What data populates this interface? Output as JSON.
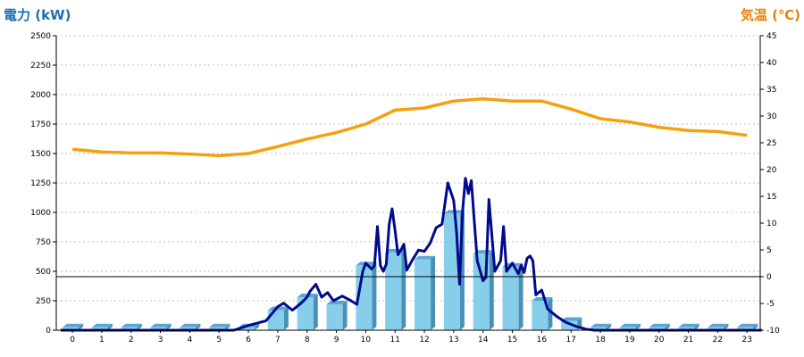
{
  "chart_data": {
    "type": "bar",
    "categories": [
      "0",
      "1",
      "2",
      "3",
      "4",
      "5",
      "6",
      "7",
      "8",
      "9",
      "10",
      "11",
      "12",
      "13",
      "14",
      "15",
      "16",
      "17",
      "18",
      "19",
      "20",
      "21",
      "22",
      "23"
    ],
    "left_axis": {
      "label": "電力 (kW)",
      "ylim": [
        0,
        2500
      ],
      "ticks": [
        "0",
        "250",
        "500",
        "750",
        "1000",
        "1250",
        "1500",
        "1750",
        "2000",
        "2250",
        "2500"
      ],
      "color": "#1f6fb2"
    },
    "right_axis": {
      "label": "気温 (℃)",
      "ylim": [
        -10,
        45
      ],
      "ticks": [
        "-10",
        "-5",
        "0",
        "5",
        "10",
        "15",
        "20",
        "25",
        "30",
        "35",
        "40",
        "45"
      ],
      "color": "#e8820c"
    },
    "bars": {
      "axis": "left",
      "color": "#87ceeb",
      "values": [
        25,
        25,
        25,
        25,
        25,
        25,
        25,
        170,
        280,
        220,
        550,
        660,
        600,
        990,
        650,
        540,
        250,
        80,
        25,
        25,
        25,
        25,
        25,
        25
      ]
    },
    "power_line": {
      "axis": "left",
      "color": "#000a8c",
      "x": [
        -0.4,
        0,
        0.5,
        1,
        1.5,
        2,
        2.5,
        3,
        3.5,
        4,
        4.5,
        5,
        5.5,
        6,
        6.3,
        6.6,
        7,
        7.2,
        7.5,
        7.8,
        8,
        8.1,
        8.2,
        8.3,
        8.5,
        8.7,
        8.9,
        9.2,
        9.5,
        9.7,
        9.9,
        10,
        10.2,
        10.3,
        10.4,
        10.5,
        10.6,
        10.7,
        10.8,
        10.9,
        11,
        11.1,
        11.2,
        11.3,
        11.4,
        11.6,
        11.8,
        12,
        12.2,
        12.4,
        12.6,
        12.8,
        13,
        13.1,
        13.2,
        13.3,
        13.4,
        13.5,
        13.6,
        13.8,
        14,
        14.1,
        14.2,
        14.4,
        14.6,
        14.7,
        14.8,
        15,
        15.2,
        15.3,
        15.4,
        15.5,
        15.6,
        15.7,
        15.8,
        16,
        16.2,
        16.5,
        16.8,
        17,
        17.2,
        17.5,
        17.8,
        18,
        18.5,
        19,
        20,
        21,
        22,
        23,
        23.5
      ],
      "y": [
        0,
        0,
        0,
        0,
        0,
        0,
        0,
        0,
        0,
        0,
        0,
        0,
        0,
        40,
        60,
        80,
        200,
        230,
        170,
        230,
        280,
        330,
        360,
        390,
        280,
        320,
        250,
        290,
        250,
        220,
        500,
        570,
        520,
        550,
        880,
        550,
        500,
        560,
        900,
        1030,
        850,
        640,
        680,
        730,
        510,
        600,
        680,
        670,
        740,
        870,
        900,
        1250,
        1100,
        820,
        390,
        1000,
        1290,
        1160,
        1270,
        590,
        420,
        450,
        1110,
        500,
        590,
        880,
        500,
        570,
        480,
        550,
        490,
        610,
        630,
        590,
        300,
        340,
        180,
        120,
        70,
        50,
        30,
        10,
        0,
        0,
        0,
        0,
        0,
        0,
        0,
        0,
        0
      ]
    },
    "temperature_line": {
      "axis": "right",
      "color": "#f5a00f",
      "x": [
        0,
        1,
        2,
        3,
        4,
        5,
        6,
        7,
        8,
        9,
        10,
        11,
        12,
        13,
        14,
        15,
        16,
        17,
        18,
        19,
        20,
        21,
        22,
        23
      ],
      "y": [
        23.8,
        23.3,
        23.1,
        23.1,
        22.9,
        22.6,
        23,
        24.3,
        25.7,
        26.9,
        28.5,
        31.1,
        31.5,
        32.8,
        33.2,
        32.8,
        32.8,
        31.3,
        29.5,
        28.9,
        27.9,
        27.3,
        27.1,
        26.4
      ]
    },
    "grid": true
  }
}
